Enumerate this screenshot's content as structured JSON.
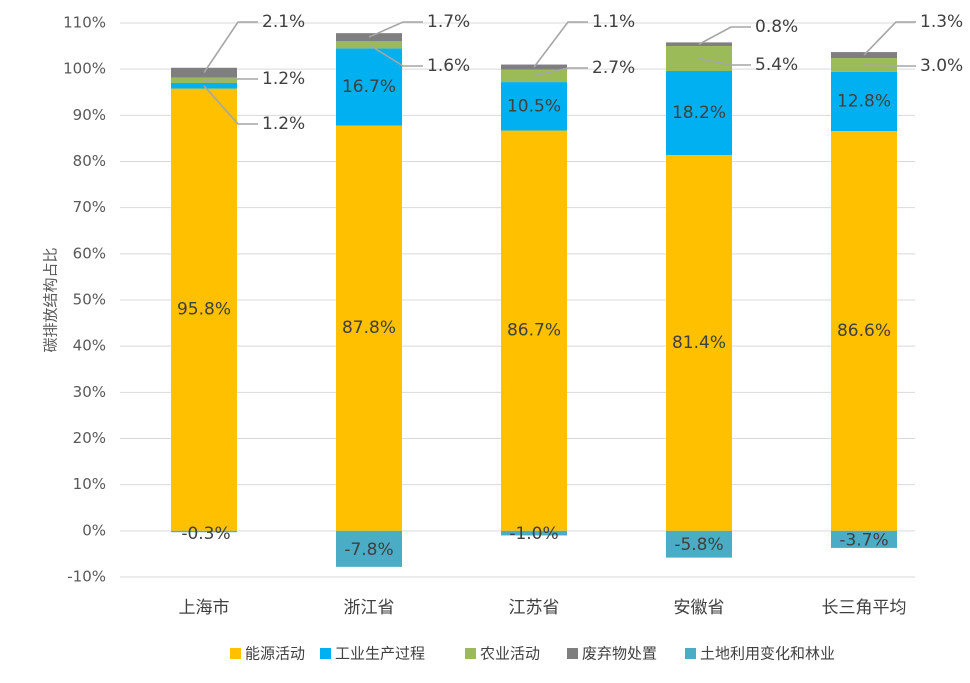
{
  "chart_data": {
    "type": "bar",
    "stacked": true,
    "categories": [
      "上海市",
      "浙江省",
      "江苏省",
      "安徽省",
      "长三角平均"
    ],
    "ylabel": "碳排放结构占比",
    "ylim": [
      -10,
      110
    ],
    "y_ticks": [
      "-10%",
      "0%",
      "10%",
      "20%",
      "30%",
      "40%",
      "50%",
      "60%",
      "70%",
      "80%",
      "90%",
      "100%",
      "110%"
    ],
    "grid": true,
    "legend_position": "bottom",
    "series": [
      {
        "name": "能源活动",
        "color": "#FFC000",
        "values": [
          95.8,
          87.8,
          86.7,
          81.4,
          86.6
        ],
        "labels": [
          "95.8%",
          "87.8%",
          "86.7%",
          "81.4%",
          "86.6%"
        ]
      },
      {
        "name": "工业生产过程",
        "color": "#00B0F0",
        "values": [
          1.2,
          16.7,
          10.5,
          18.2,
          12.8
        ],
        "labels": [
          "1.2%",
          "16.7%",
          "10.5%",
          "18.2%",
          "12.8%"
        ]
      },
      {
        "name": "农业活动",
        "color": "#9BBB59",
        "values": [
          1.2,
          1.6,
          2.7,
          5.4,
          3.0
        ],
        "labels": [
          "1.2%",
          "1.6%",
          "2.7%",
          "5.4%",
          "3.0%"
        ]
      },
      {
        "name": "废弃物处置",
        "color": "#7F7F7F",
        "values": [
          2.1,
          1.7,
          1.1,
          0.8,
          1.3
        ],
        "labels": [
          "2.1%",
          "1.7%",
          "1.1%",
          "0.8%",
          "1.3%"
        ]
      },
      {
        "name": "土地利用变化和林业",
        "color": "#4BACC6",
        "values": [
          -0.3,
          -7.8,
          -1.0,
          -5.8,
          -3.7
        ],
        "labels": [
          "-0.3%",
          "-7.8%",
          "-1.0%",
          "-5.8%",
          "-3.7%"
        ]
      }
    ]
  }
}
